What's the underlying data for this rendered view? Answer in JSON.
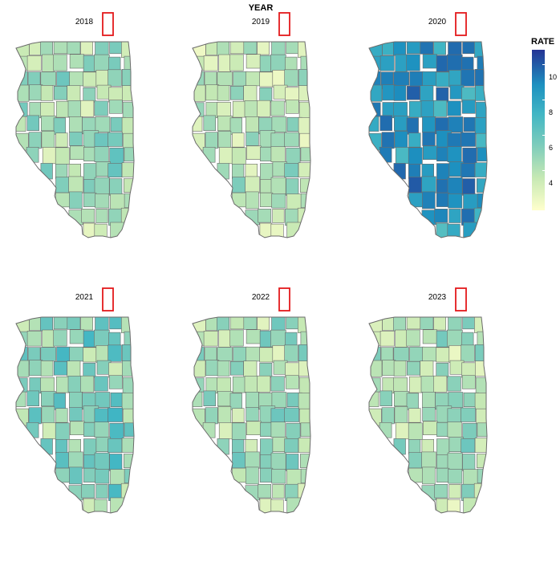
{
  "title": "YEAR",
  "legend": {
    "title": "RATE",
    "ticks": [
      "4",
      "6",
      "8",
      "10"
    ],
    "tick_values": [
      4,
      6,
      8,
      10
    ],
    "range": [
      2.5,
      11.5
    ]
  },
  "colors": {
    "scale": [
      "#ffffcc",
      "#c7e9b4",
      "#7fcdbb",
      "#41b6c4",
      "#1d91c0",
      "#225ea8",
      "#253494"
    ],
    "county_border": "#6b6b6b",
    "highlight": "#e41a1c"
  },
  "panels": [
    {
      "year": "2018",
      "level": 0.24,
      "spread": 0.13
    },
    {
      "year": "2019",
      "level": 0.19,
      "spread": 0.12
    },
    {
      "year": "2020",
      "level": 0.66,
      "spread": 0.16
    },
    {
      "year": "2021",
      "level": 0.31,
      "spread": 0.15
    },
    {
      "year": "2022",
      "level": 0.24,
      "spread": 0.12
    },
    {
      "year": "2023",
      "level": 0.22,
      "spread": 0.12
    }
  ]
}
